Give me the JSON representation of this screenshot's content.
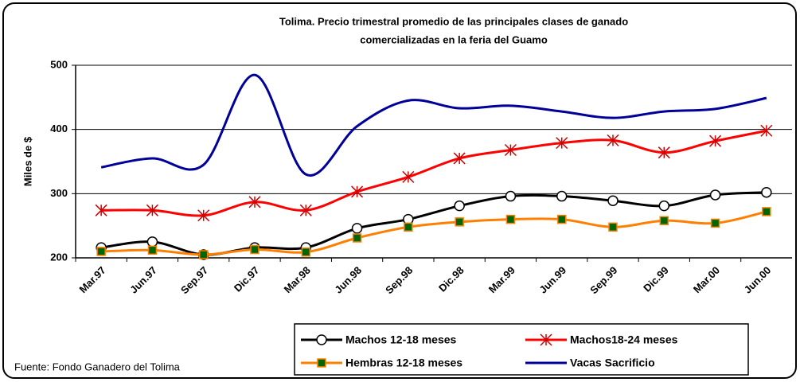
{
  "chart_data": {
    "type": "line",
    "title": [
      "Tolima. Precio trimestral promedio de las principales clases de ganado",
      "comercializadas en la feria del Guamo"
    ],
    "y_label": "Miles de $",
    "source": "Fuente: Fondo Ganadero del Tolima",
    "categories": [
      "Mar.97",
      "Jun.97",
      "Sep.97",
      "Dic.97",
      "Mar.98",
      "Jun.98",
      "Sep.98",
      "Dic.98",
      "Mar.99",
      "Jun.99",
      "Sep.99",
      "Dic.99",
      "Mar.00",
      "Jun.00"
    ],
    "ylim": [
      200,
      500
    ],
    "yticks": [
      200,
      300,
      400,
      500
    ],
    "grid": true,
    "series": [
      {
        "name": "Machos 12-18 meses",
        "color": "#000000",
        "marker": "circle",
        "marker_color": "#ffffff",
        "values": [
          216,
          225,
          205,
          216,
          216,
          246,
          260,
          281,
          296,
          296,
          289,
          281,
          298,
          302
        ]
      },
      {
        "name": "Machos18-24 meses",
        "color": "#ff0000",
        "marker": "asterisk",
        "marker_color": "#cc0000",
        "values": [
          274,
          274,
          266,
          287,
          274,
          303,
          326,
          355,
          368,
          379,
          383,
          364,
          382,
          398
        ]
      },
      {
        "name": "Hembras 12-18 meses",
        "color": "#ff8000",
        "marker": "square",
        "marker_color": "#006600",
        "values": [
          210,
          212,
          205,
          213,
          209,
          231,
          248,
          256,
          260,
          260,
          248,
          258,
          254,
          272
        ]
      },
      {
        "name": "Vacas Sacrificio",
        "color": "#000099",
        "marker": "none",
        "marker_color": "#000099",
        "values": [
          341,
          355,
          345,
          485,
          330,
          405,
          445,
          433,
          437,
          428,
          418,
          428,
          432,
          449
        ]
      }
    ]
  }
}
